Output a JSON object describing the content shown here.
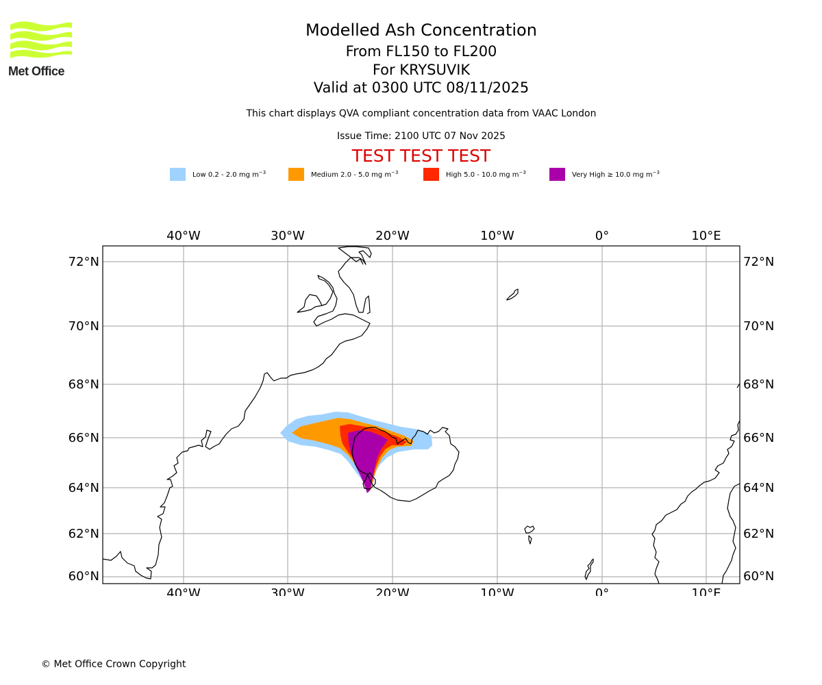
{
  "logo": {
    "text": "Met Office",
    "color": "#ccff33"
  },
  "header": {
    "title": "Modelled Ash Concentration",
    "levels": "From FL150 to FL200",
    "volcano": "For KRYSUVIK",
    "valid": "Valid at 0300 UTC 08/11/2025",
    "note": "This chart displays QVA compliant concentration data from VAAC London",
    "issue_time": "Issue Time: 2100 UTC 07 Nov 2025",
    "test_banner": "TEST TEST TEST",
    "test_color": "#dd0000"
  },
  "legend": [
    {
      "label": "Low 0.2 - 2.0 mg m",
      "exp": "−3",
      "color": "#a0d2ff"
    },
    {
      "label": "Medium 2.0 - 5.0 mg m",
      "exp": "−3",
      "color": "#ff9900"
    },
    {
      "label": "High 5.0 - 10.0 mg m",
      "exp": "−3",
      "color": "#ff2800"
    },
    {
      "label": "Very High  ≥  10.0 mg m",
      "exp": "−3",
      "color": "#aa00aa"
    }
  ],
  "map": {
    "lon_ticks": [
      "40°W",
      "30°W",
      "20°W",
      "10°W",
      "0°",
      "10°E"
    ],
    "lat_ticks": [
      "72°N",
      "70°N",
      "68°N",
      "66°N",
      "64°N",
      "62°N",
      "60°N"
    ],
    "extent": {
      "lon_min": -47.7,
      "lon_max": 13.2,
      "lat_min": 59.7,
      "lat_max": 72.5
    }
  },
  "footer": {
    "copyright": "© Met Office Crown Copyright"
  }
}
